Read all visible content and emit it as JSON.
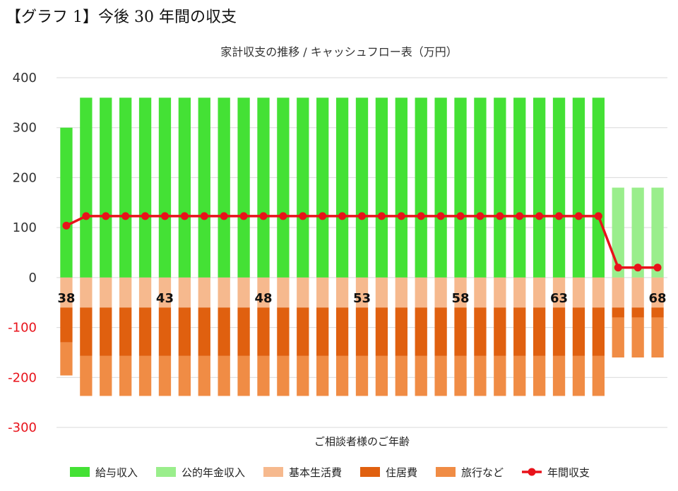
{
  "heading": "【グラフ 1】今後 30 年間の収支",
  "chart_data": {
    "type": "bar",
    "title": "家計収支の推移 / キャッシュフロー表（万円）",
    "xlabel": "ご相談者様のご年齢",
    "ylabel": "",
    "ylim": [
      -300,
      400
    ],
    "yticks": [
      400,
      300,
      200,
      100,
      0,
      -100,
      -200,
      -300
    ],
    "x": [
      38,
      39,
      40,
      41,
      42,
      43,
      44,
      45,
      46,
      47,
      48,
      49,
      50,
      51,
      52,
      53,
      54,
      55,
      56,
      57,
      58,
      59,
      60,
      61,
      62,
      63,
      64,
      65,
      66,
      67,
      68
    ],
    "x_tick_labels": [
      "38",
      "43",
      "48",
      "53",
      "58",
      "63",
      "68"
    ],
    "grid": true,
    "legend_position": "bottom",
    "series": [
      {
        "name": "給与収入",
        "kind": "bar",
        "color": "#44e135",
        "values": [
          300,
          360,
          360,
          360,
          360,
          360,
          360,
          360,
          360,
          360,
          360,
          360,
          360,
          360,
          360,
          360,
          360,
          360,
          360,
          360,
          360,
          360,
          360,
          360,
          360,
          360,
          360,
          360,
          0,
          0,
          0
        ]
      },
      {
        "name": "公的年金収入",
        "kind": "bar",
        "color": "#9aee8c",
        "values": [
          0,
          0,
          0,
          0,
          0,
          0,
          0,
          0,
          0,
          0,
          0,
          0,
          0,
          0,
          0,
          0,
          0,
          0,
          0,
          0,
          0,
          0,
          0,
          0,
          0,
          0,
          0,
          0,
          180,
          180,
          180
        ]
      },
      {
        "name": "基本生活費",
        "kind": "bar",
        "color": "#f6b98e",
        "values": [
          -60,
          -60,
          -60,
          -60,
          -60,
          -60,
          -60,
          -60,
          -60,
          -60,
          -60,
          -60,
          -60,
          -60,
          -60,
          -60,
          -60,
          -60,
          -60,
          -60,
          -60,
          -60,
          -60,
          -60,
          -60,
          -60,
          -60,
          -60,
          -60,
          -60,
          -60
        ]
      },
      {
        "name": "住居費",
        "kind": "bar",
        "color": "#e0600f",
        "values": [
          -70,
          -97,
          -97,
          -97,
          -97,
          -97,
          -97,
          -97,
          -97,
          -97,
          -97,
          -97,
          -97,
          -97,
          -97,
          -97,
          -97,
          -97,
          -97,
          -97,
          -97,
          -97,
          -97,
          -97,
          -97,
          -97,
          -97,
          -97,
          -20,
          -20,
          -20
        ]
      },
      {
        "name": "旅行など",
        "kind": "bar",
        "color": "#f08c45",
        "values": [
          -66,
          -80,
          -80,
          -80,
          -80,
          -80,
          -80,
          -80,
          -80,
          -80,
          -80,
          -80,
          -80,
          -80,
          -80,
          -80,
          -80,
          -80,
          -80,
          -80,
          -80,
          -80,
          -80,
          -80,
          -80,
          -80,
          -80,
          -80,
          -80,
          -80,
          -80
        ]
      },
      {
        "name": "年間収支",
        "kind": "line",
        "color": "#e8121a",
        "values": [
          104,
          123,
          123,
          123,
          123,
          123,
          123,
          123,
          123,
          123,
          123,
          123,
          123,
          123,
          123,
          123,
          123,
          123,
          123,
          123,
          123,
          123,
          123,
          123,
          123,
          123,
          123,
          123,
          20,
          20,
          20
        ]
      }
    ],
    "colors": {
      "positive_tick": "#333333",
      "negative_tick": "#e8121a",
      "grid": "#d9d9d9"
    }
  }
}
